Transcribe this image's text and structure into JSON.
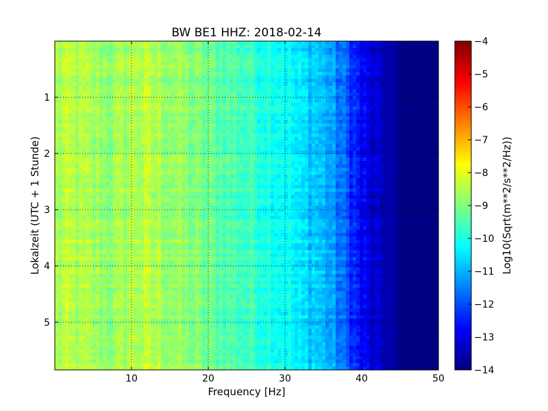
{
  "chart_data": {
    "type": "heatmap",
    "title": "BW BE1 HHZ: 2018-02-14",
    "xlabel": "Frequency [Hz]",
    "ylabel": "Lokalzeit (UTC + 1 Stunde)",
    "xlim": [
      0,
      50
    ],
    "ylim": [
      5.85,
      0
    ],
    "x_ticks": [
      10,
      20,
      30,
      40,
      50
    ],
    "y_ticks": [
      1,
      2,
      3,
      4,
      5
    ],
    "grid": true,
    "colormap": "jet",
    "colorbar": {
      "label": "Log10(Sqrt(m**2/s**2/Hz))",
      "range": [
        -14,
        -4
      ],
      "ticks": [
        -4,
        -5,
        -6,
        -7,
        -8,
        -9,
        -10,
        -11,
        -12,
        -13,
        -14
      ]
    },
    "spectrum_profile": {
      "frequency_hz": [
        0,
        2,
        5,
        8,
        10,
        12,
        15,
        20,
        25,
        30,
        32,
        34,
        36,
        38,
        40,
        42,
        44,
        45,
        50
      ],
      "log10_amplitude": [
        -8.6,
        -8.5,
        -8.7,
        -8.8,
        -8.5,
        -8.5,
        -8.7,
        -9.2,
        -9.6,
        -10.1,
        -10.6,
        -10.7,
        -11.2,
        -11.9,
        -12.8,
        -13.4,
        -13.6,
        -13.95,
        -14
      ]
    }
  }
}
